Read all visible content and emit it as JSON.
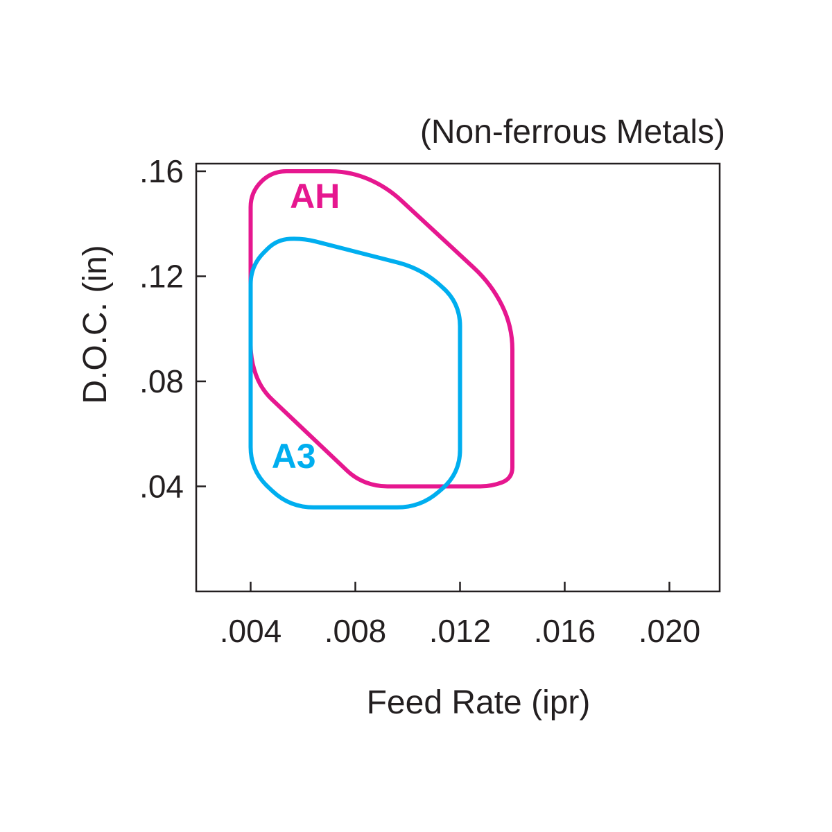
{
  "chart_data": {
    "type": "area",
    "title": "(Non-ferrous Metals)",
    "xlabel": "Feed Rate (ipr)",
    "ylabel": "D.O.C. (in)",
    "xlim": [
      0,
      0.02
    ],
    "ylim": [
      0,
      0.16
    ],
    "x_ticks": [
      {
        "value": 0.004,
        "label": ".004"
      },
      {
        "value": 0.008,
        "label": ".008"
      },
      {
        "value": 0.012,
        "label": ".012"
      },
      {
        "value": 0.016,
        "label": ".016"
      },
      {
        "value": 0.02,
        "label": ".020"
      }
    ],
    "y_ticks": [
      {
        "value": 0.04,
        "label": ".04"
      },
      {
        "value": 0.08,
        "label": ".08"
      },
      {
        "value": 0.12,
        "label": ".12"
      },
      {
        "value": 0.16,
        "label": ".16"
      }
    ],
    "grid": false,
    "legend": "none",
    "series": [
      {
        "name": "AH",
        "color": "#e6178f",
        "label_at": [
          0.0055,
          0.146
        ],
        "points": [
          [
            0.004,
            0.152
          ],
          [
            0.004,
            0.088
          ],
          [
            0.0044,
            0.077
          ],
          [
            0.008,
            0.043
          ],
          [
            0.0088,
            0.04
          ],
          [
            0.0132,
            0.04
          ],
          [
            0.014,
            0.043
          ],
          [
            0.014,
            0.101
          ],
          [
            0.0132,
            0.117
          ],
          [
            0.0092,
            0.154
          ],
          [
            0.0078,
            0.16
          ],
          [
            0.0048,
            0.16
          ]
        ]
      },
      {
        "name": "A3",
        "color": "#00aeef",
        "label_at": [
          0.0048,
          0.047
        ],
        "points": [
          [
            0.004,
            0.046
          ],
          [
            0.004,
            0.124
          ],
          [
            0.005,
            0.134
          ],
          [
            0.006,
            0.1345
          ],
          [
            0.0105,
            0.123
          ],
          [
            0.012,
            0.11
          ],
          [
            0.012,
            0.045
          ],
          [
            0.0105,
            0.032
          ],
          [
            0.0055,
            0.032
          ]
        ]
      }
    ]
  }
}
